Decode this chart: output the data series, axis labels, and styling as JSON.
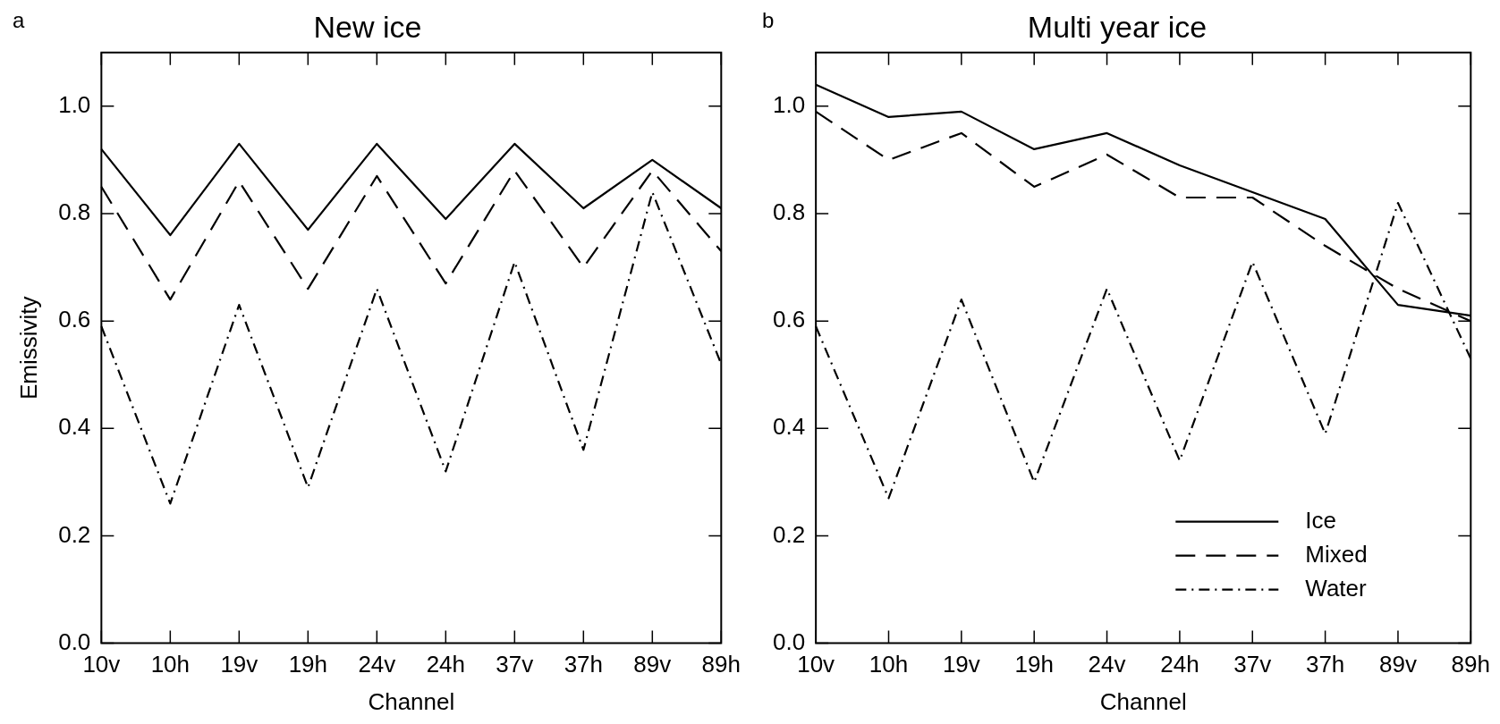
{
  "chart_data": [
    {
      "type": "line",
      "title": "New ice",
      "xlabel": "Channel",
      "ylabel": "Emissivity",
      "annotations": [
        "a"
      ],
      "categories": [
        "10v",
        "10h",
        "19v",
        "19h",
        "24v",
        "24h",
        "37v",
        "37h",
        "89v",
        "89h"
      ],
      "ylim": [
        0,
        1.1
      ],
      "yticks": [
        {
          "value": 0,
          "label": "0.0"
        },
        {
          "value": 0.2,
          "label": "0.2"
        },
        {
          "value": 0.4,
          "label": "0.4"
        },
        {
          "value": 0.6,
          "label": "0.6"
        },
        {
          "value": 0.8,
          "label": "0.8"
        },
        {
          "value": 1,
          "label": "1.0"
        }
      ],
      "grid": false,
      "legend": false,
      "marker": "none",
      "series": [
        {
          "color": "#000000",
          "line_style": "solid",
          "values": [
            0.92,
            0.76,
            0.93,
            0.77,
            0.93,
            0.79,
            0.93,
            0.81,
            0.9,
            0.81
          ]
        },
        {
          "color": "#000000",
          "line_style": "dashed",
          "values": [
            0.85,
            0.64,
            0.86,
            0.66,
            0.87,
            0.67,
            0.88,
            0.7,
            0.88,
            0.73
          ]
        },
        {
          "color": "#000000",
          "line_style": "dashdot",
          "values": [
            0.59,
            0.26,
            0.63,
            0.29,
            0.66,
            0.32,
            0.71,
            0.36,
            0.84,
            0.52
          ]
        }
      ]
    },
    {
      "type": "line",
      "title": "Multi year ice",
      "xlabel": "Channel",
      "annotations": [
        "b"
      ],
      "categories": [
        "10v",
        "10h",
        "19v",
        "19h",
        "24v",
        "24h",
        "37v",
        "37h",
        "89v",
        "89h"
      ],
      "ylim": [
        0,
        1.1
      ],
      "yticks": [
        {
          "value": 0,
          "label": "0.0"
        },
        {
          "value": 0.2,
          "label": "0.2"
        },
        {
          "value": 0.4,
          "label": "0.4"
        },
        {
          "value": 0.6,
          "label": "0.6"
        },
        {
          "value": 0.8,
          "label": "0.8"
        },
        {
          "value": 1,
          "label": "1.0"
        }
      ],
      "grid": false,
      "legend": "bottom right",
      "marker": "none",
      "series": [
        {
          "name": "Ice",
          "color": "#000000",
          "line_style": "solid",
          "values": [
            1.04,
            0.98,
            0.99,
            0.92,
            0.95,
            0.89,
            0.84,
            0.79,
            0.63,
            0.61
          ]
        },
        {
          "name": "Mixed",
          "color": "#000000",
          "line_style": "dashed",
          "values": [
            0.99,
            0.9,
            0.95,
            0.85,
            0.91,
            0.83,
            0.83,
            0.74,
            0.66,
            0.6
          ]
        },
        {
          "name": "Water",
          "color": "#000000",
          "line_style": "dashdot",
          "values": [
            0.59,
            0.27,
            0.64,
            0.3,
            0.66,
            0.34,
            0.71,
            0.39,
            0.82,
            0.53
          ]
        }
      ]
    }
  ]
}
